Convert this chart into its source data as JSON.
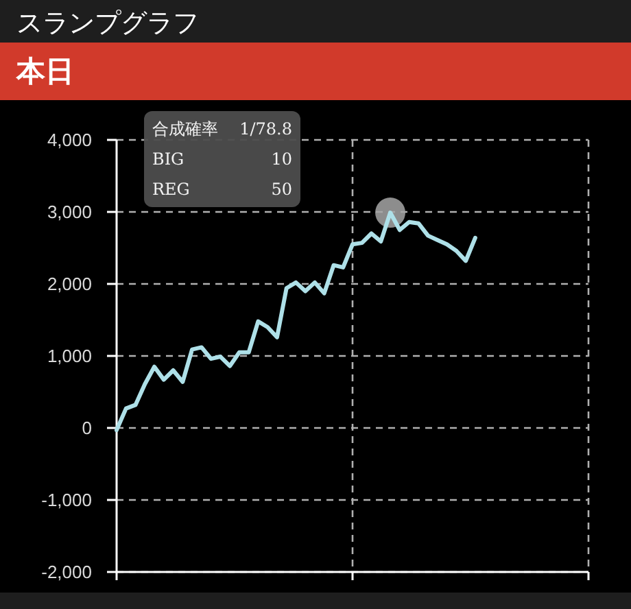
{
  "chart_data": {
    "type": "line",
    "title": "スランプグラフ",
    "subtitle": "本日",
    "annotations": [
      "合成確率",
      "1/78.8",
      "BIG",
      "10",
      "REG",
      "50"
    ],
    "categories": [
      null,
      null,
      null,
      null,
      null,
      null,
      null,
      null,
      null,
      null,
      null,
      null,
      null,
      null,
      null,
      null,
      null,
      null,
      null,
      null,
      null,
      null,
      null,
      null,
      null,
      null,
      null,
      null,
      null,
      null,
      null,
      null,
      null,
      null,
      null,
      null,
      null,
      null,
      null,
      null,
      null,
      null,
      null,
      null,
      null,
      null,
      null,
      null,
      null,
      null,
      null
    ],
    "series": [
      {
        "color": "#aee0e8",
        "values": [
          -30,
          270,
          320,
          610,
          850,
          670,
          800,
          640,
          1090,
          1120,
          960,
          990,
          860,
          1050,
          1050,
          1480,
          1400,
          1260,
          1940,
          2020,
          1900,
          2020,
          1870,
          2260,
          2230,
          2550,
          2570,
          2700,
          2590,
          2990,
          2750,
          2860,
          2840,
          2670,
          2610,
          2550,
          2460,
          2320,
          2640,
          null,
          null,
          null,
          null,
          null,
          null,
          null,
          null,
          null,
          null,
          null,
          null
        ]
      },
      {
        "type": "scatter",
        "color": "#a6a6a6",
        "marker": "circle",
        "values": [
          null,
          null,
          null,
          null,
          null,
          null,
          null,
          null,
          null,
          null,
          null,
          null,
          null,
          null,
          null,
          null,
          null,
          null,
          null,
          null,
          null,
          null,
          null,
          null,
          null,
          null,
          null,
          null,
          null,
          2990,
          null,
          null,
          null,
          null,
          null,
          null,
          null,
          null,
          null,
          null,
          null,
          null,
          null,
          null,
          null,
          null,
          null,
          null,
          null,
          null,
          null
        ]
      }
    ],
    "ylim": [
      -2000,
      4000
    ],
    "yticks": [
      {
        "value": -2000,
        "label": "-2,000"
      },
      {
        "value": -1000,
        "label": "-1,000"
      },
      0,
      {
        "value": 1000,
        "label": "1,000"
      },
      {
        "value": 2000,
        "label": "2,000"
      },
      {
        "value": 3000,
        "label": "3,000"
      },
      {
        "value": 4000,
        "label": "4,000"
      }
    ],
    "grid": true
  }
}
